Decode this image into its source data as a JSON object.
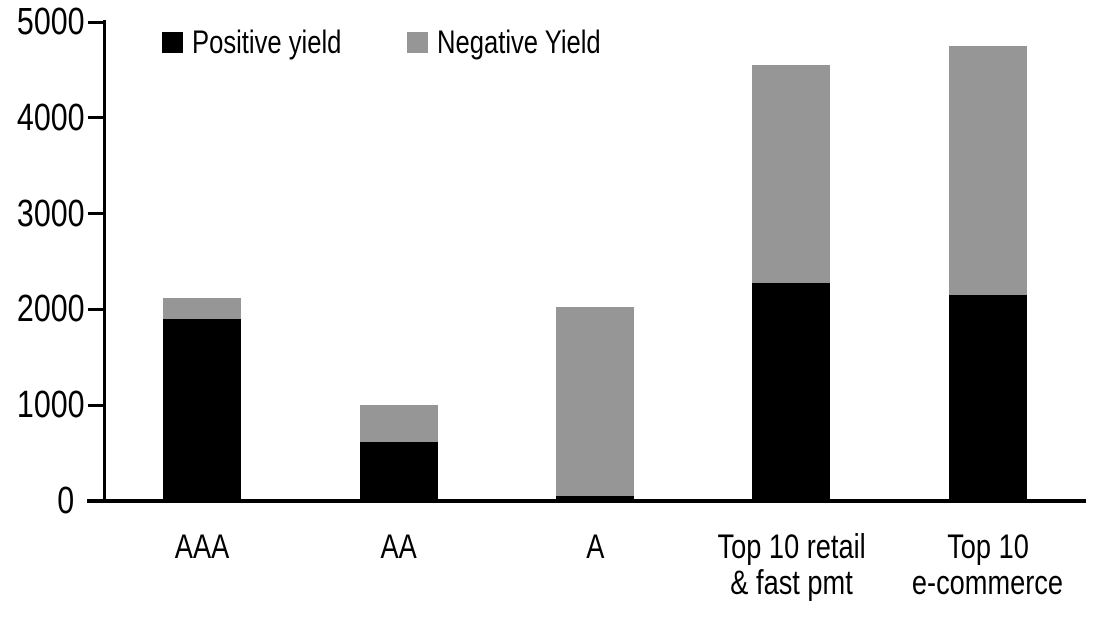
{
  "figure": {
    "background": "#ffffff",
    "axis_color": "#000000"
  },
  "chart_data": {
    "type": "bar",
    "stacked": true,
    "title": "",
    "xlabel": "",
    "ylabel": "",
    "categories": [
      "AAA",
      "AA",
      "A",
      "Top 10 retail & fast pmt",
      "Top 10 e-commerce"
    ],
    "category_label_lines": [
      [
        "AAA"
      ],
      [
        "AA"
      ],
      [
        "A"
      ],
      [
        "Top 10 retail",
        "& fast pmt"
      ],
      [
        "Top 10",
        "e-commerce"
      ]
    ],
    "series": [
      {
        "name": "Positive yield",
        "color": "#000000",
        "values": [
          1900,
          620,
          50,
          2280,
          2150
        ]
      },
      {
        "name": "Negative Yield",
        "color": "#969696",
        "values": [
          220,
          380,
          1980,
          2270,
          2600
        ]
      }
    ],
    "stack_totals": [
      2120,
      1000,
      2030,
      4550,
      4750
    ],
    "ylim": [
      0,
      5000
    ],
    "yticks": [
      0,
      1000,
      2000,
      3000,
      4000,
      5000
    ],
    "grid": false,
    "legend_position": "top"
  }
}
